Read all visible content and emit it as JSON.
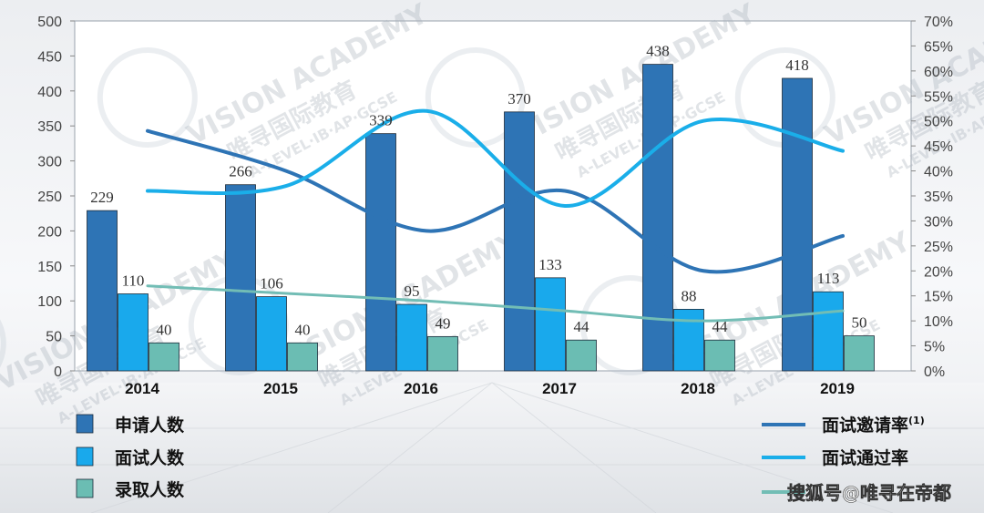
{
  "chart_data": {
    "type": "bar",
    "categories": [
      "2014",
      "2015",
      "2016",
      "2017",
      "2018",
      "2019"
    ],
    "series": [
      {
        "name": "申请人数",
        "kind": "bar",
        "axis": "left",
        "color": "#2e74b5",
        "values": [
          229,
          266,
          339,
          370,
          438,
          418
        ]
      },
      {
        "name": "面试人数",
        "kind": "bar",
        "axis": "left",
        "color": "#19a9ec",
        "values": [
          110,
          106,
          95,
          133,
          88,
          113
        ]
      },
      {
        "name": "录取人数",
        "kind": "bar",
        "axis": "left",
        "color": "#6bbdb3",
        "values": [
          40,
          40,
          49,
          44,
          44,
          50
        ]
      },
      {
        "name": "面试邀请率",
        "name_sup": "(1)",
        "kind": "line",
        "axis": "right",
        "color": "#2e74b5",
        "values": [
          48,
          40,
          28,
          36,
          20,
          27
        ]
      },
      {
        "name": "面试通过率",
        "kind": "line",
        "axis": "right",
        "color": "#1aaee9",
        "values": [
          36,
          37,
          52,
          33,
          50,
          44
        ]
      },
      {
        "name": "",
        "kind": "line",
        "axis": "right",
        "color": "#72bdb5",
        "values": [
          17,
          15.5,
          14,
          12,
          10,
          12
        ]
      }
    ],
    "yleft": {
      "min": 0,
      "max": 500,
      "ticks": [
        "0",
        "50",
        "100",
        "150",
        "200",
        "250",
        "300",
        "350",
        "400",
        "450",
        "500"
      ]
    },
    "yright": {
      "min": 0,
      "max": 70,
      "ticks": [
        "0%",
        "5%",
        "10%",
        "15%",
        "20%",
        "25%",
        "30%",
        "35%",
        "40%",
        "45%",
        "50%",
        "55%",
        "60%",
        "65%",
        "70%"
      ]
    },
    "title": "",
    "xlabel": "",
    "ylabel": "",
    "grid": false,
    "legend_position": "bottom"
  },
  "watermark": {
    "brand": "VISION ACADEMY",
    "cn": "唯寻国际教育",
    "sub": "A-LEVEL·IB·AP·GCSE"
  },
  "credit": "搜狐号@唯寻在帝都"
}
